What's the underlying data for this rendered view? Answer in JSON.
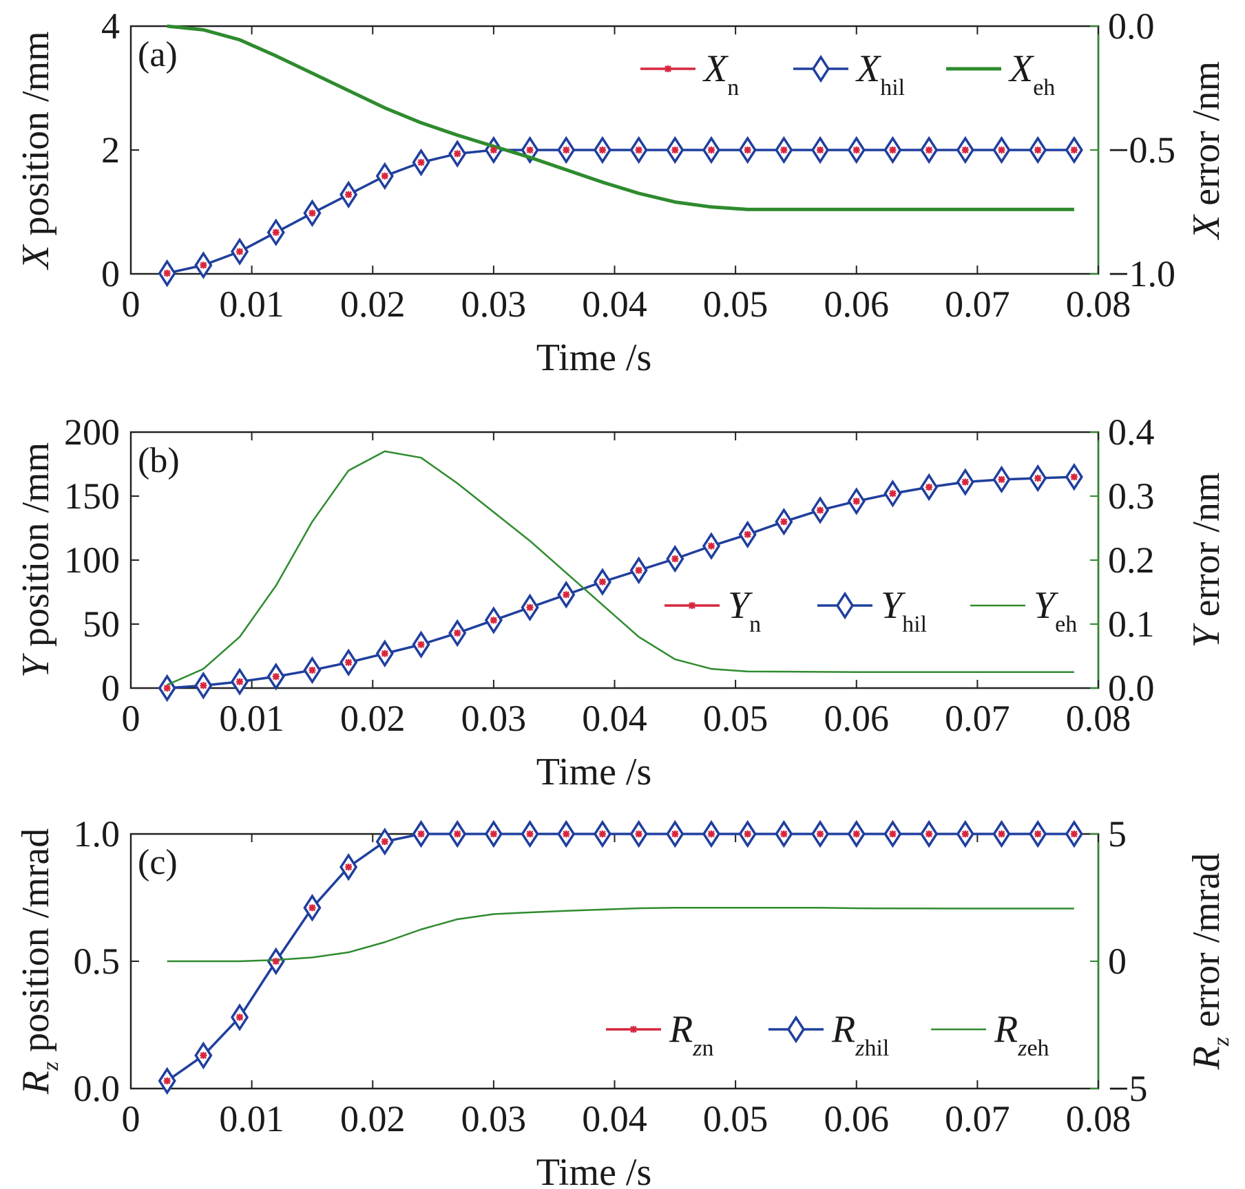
{
  "colors": {
    "n": "#d7263d",
    "hil": "#1f3f9e",
    "eh": "#2e8b2e",
    "axis": "#222222"
  },
  "chart_data": [
    {
      "type": "line",
      "panel_label": "(a)",
      "xlabel": "Time /s",
      "xlim": [
        0,
        0.08
      ],
      "xticks": [
        "0",
        "0.01",
        "0.02",
        "0.03",
        "0.04",
        "0.05",
        "0.06",
        "0.07",
        "0.08"
      ],
      "ylabel_left": {
        "sym": "X",
        "rest": " position /mm"
      },
      "ylim_left": [
        0,
        4
      ],
      "yticks_left": [
        "0",
        "2",
        "4"
      ],
      "ylabel_right": {
        "sym": "X",
        "rest": " error /nm"
      },
      "ylim_right": [
        -1.0,
        0.0
      ],
      "yticks_right": [
        "−1.0",
        "−0.5",
        "0.0"
      ],
      "legend_loc": "top-right",
      "x": [
        0.003,
        0.006,
        0.009,
        0.012,
        0.015,
        0.018,
        0.021,
        0.024,
        0.027,
        0.03,
        0.033,
        0.036,
        0.039,
        0.042,
        0.045,
        0.048,
        0.051,
        0.054,
        0.057,
        0.06,
        0.063,
        0.066,
        0.069,
        0.072,
        0.075,
        0.078
      ],
      "series": [
        {
          "name": {
            "sym": "X",
            "sub": "n"
          },
          "axis": "left",
          "role": "n",
          "values": [
            0.01,
            0.14,
            0.36,
            0.67,
            0.98,
            1.28,
            1.58,
            1.8,
            1.94,
            2.0,
            2.0,
            2.0,
            2.0,
            2.0,
            2.0,
            2.0,
            2.0,
            2.0,
            2.0,
            2.0,
            2.0,
            2.0,
            2.0,
            2.0,
            2.0,
            2.0
          ]
        },
        {
          "name": {
            "sym": "X",
            "sub": "hil"
          },
          "axis": "left",
          "role": "hil",
          "values": [
            0.01,
            0.14,
            0.36,
            0.67,
            0.98,
            1.28,
            1.58,
            1.8,
            1.94,
            2.0,
            2.0,
            2.0,
            2.0,
            2.0,
            2.0,
            2.0,
            2.0,
            2.0,
            2.0,
            2.0,
            2.0,
            2.0,
            2.0,
            2.0,
            2.0,
            2.0
          ]
        },
        {
          "name": {
            "sym": "X",
            "sub": "eh"
          },
          "axis": "right",
          "role": "eh",
          "width": 5,
          "x": [
            0.003,
            0.006,
            0.009,
            0.012,
            0.015,
            0.018,
            0.021,
            0.024,
            0.027,
            0.03,
            0.033,
            0.036,
            0.039,
            0.042,
            0.045,
            0.048,
            0.051,
            0.06,
            0.07,
            0.078
          ],
          "values": [
            0.0,
            -0.015,
            -0.055,
            -0.12,
            -0.19,
            -0.26,
            -0.33,
            -0.39,
            -0.44,
            -0.485,
            -0.53,
            -0.58,
            -0.63,
            -0.675,
            -0.71,
            -0.73,
            -0.74,
            -0.74,
            -0.74,
            -0.74
          ]
        }
      ]
    },
    {
      "type": "line",
      "panel_label": "(b)",
      "xlabel": "Time /s",
      "xlim": [
        0,
        0.08
      ],
      "xticks": [
        "0",
        "0.01",
        "0.02",
        "0.03",
        "0.04",
        "0.05",
        "0.06",
        "0.07",
        "0.08"
      ],
      "ylabel_left": {
        "sym": "Y",
        "rest": " position /mm"
      },
      "ylim_left": [
        0,
        200
      ],
      "yticks_left": [
        "0",
        "50",
        "100",
        "150",
        "200"
      ],
      "ylabel_right": {
        "sym": "Y",
        "rest": " error /nm"
      },
      "ylim_right": [
        0.0,
        0.4
      ],
      "yticks_right": [
        "0.0",
        "0.1",
        "0.2",
        "0.3",
        "0.4"
      ],
      "legend_loc": "center-right",
      "x": [
        0.003,
        0.006,
        0.009,
        0.012,
        0.015,
        0.018,
        0.021,
        0.024,
        0.027,
        0.03,
        0.033,
        0.036,
        0.039,
        0.042,
        0.045,
        0.048,
        0.051,
        0.054,
        0.057,
        0.06,
        0.063,
        0.066,
        0.069,
        0.072,
        0.075,
        0.078
      ],
      "series": [
        {
          "name": {
            "sym": "Y",
            "sub": "n"
          },
          "axis": "left",
          "role": "n",
          "values": [
            0,
            2,
            5,
            9,
            14,
            20,
            27,
            34,
            43,
            53,
            63,
            73,
            83,
            92,
            101,
            111,
            120,
            130,
            139,
            146,
            152,
            157,
            161,
            163,
            164,
            165
          ]
        },
        {
          "name": {
            "sym": "Y",
            "sub": "hil"
          },
          "axis": "left",
          "role": "hil",
          "values": [
            0,
            2,
            5,
            9,
            14,
            20,
            27,
            34,
            43,
            53,
            63,
            73,
            83,
            92,
            101,
            111,
            120,
            130,
            139,
            146,
            152,
            157,
            161,
            163,
            164,
            165
          ]
        },
        {
          "name": {
            "sym": "Y",
            "sub": "eh"
          },
          "axis": "right",
          "role": "eh",
          "width": 2.5,
          "x": [
            0.003,
            0.006,
            0.009,
            0.012,
            0.015,
            0.018,
            0.021,
            0.024,
            0.027,
            0.03,
            0.033,
            0.036,
            0.039,
            0.042,
            0.045,
            0.048,
            0.051,
            0.06,
            0.07,
            0.078
          ],
          "values": [
            0.005,
            0.03,
            0.08,
            0.16,
            0.26,
            0.34,
            0.37,
            0.36,
            0.32,
            0.275,
            0.23,
            0.18,
            0.13,
            0.08,
            0.045,
            0.03,
            0.026,
            0.025,
            0.025,
            0.025
          ]
        }
      ]
    },
    {
      "type": "line",
      "panel_label": "(c)",
      "xlabel": "Time /s",
      "xlim": [
        0,
        0.08
      ],
      "xticks": [
        "0",
        "0.01",
        "0.02",
        "0.03",
        "0.04",
        "0.05",
        "0.06",
        "0.07",
        "0.08"
      ],
      "ylabel_left": {
        "sym": "R",
        "subi": "z",
        "rest": " position /mrad"
      },
      "ylim_left": [
        0.0,
        1.0
      ],
      "yticks_left": [
        "0.0",
        "0.5",
        "1.0"
      ],
      "ylabel_right": {
        "sym": "R",
        "subi": "z",
        "rest": " error /mrad"
      },
      "ylim_right": [
        -5,
        5
      ],
      "yticks_right": [
        "−5",
        "0",
        "5"
      ],
      "legend_loc": "bottom-right",
      "x": [
        0.003,
        0.006,
        0.009,
        0.012,
        0.015,
        0.018,
        0.021,
        0.024,
        0.027,
        0.03,
        0.033,
        0.036,
        0.039,
        0.042,
        0.045,
        0.048,
        0.051,
        0.054,
        0.057,
        0.06,
        0.063,
        0.066,
        0.069,
        0.072,
        0.075,
        0.078
      ],
      "series": [
        {
          "name": {
            "sym": "R",
            "subi": "z",
            "sub": "n"
          },
          "axis": "left",
          "role": "n",
          "values": [
            0.03,
            0.13,
            0.28,
            0.5,
            0.71,
            0.87,
            0.97,
            1.0,
            1.0,
            1.0,
            1.0,
            1.0,
            1.0,
            1.0,
            1.0,
            1.0,
            1.0,
            1.0,
            1.0,
            1.0,
            1.0,
            1.0,
            1.0,
            1.0,
            1.0,
            1.0
          ]
        },
        {
          "name": {
            "sym": "R",
            "subi": "z",
            "sub": "hil"
          },
          "axis": "left",
          "role": "hil",
          "values": [
            0.03,
            0.13,
            0.28,
            0.5,
            0.71,
            0.87,
            0.97,
            1.0,
            1.0,
            1.0,
            1.0,
            1.0,
            1.0,
            1.0,
            1.0,
            1.0,
            1.0,
            1.0,
            1.0,
            1.0,
            1.0,
            1.0,
            1.0,
            1.0,
            1.0,
            1.0
          ]
        },
        {
          "name": {
            "sym": "R",
            "subi": "z",
            "sub": "eh"
          },
          "axis": "right",
          "role": "eh",
          "width": 2.5,
          "x": [
            0.003,
            0.006,
            0.009,
            0.012,
            0.015,
            0.018,
            0.021,
            0.024,
            0.027,
            0.03,
            0.033,
            0.036,
            0.039,
            0.042,
            0.045,
            0.048,
            0.051,
            0.054,
            0.057,
            0.06,
            0.07,
            0.078
          ],
          "values": [
            0.0,
            0.0,
            0.0,
            0.05,
            0.15,
            0.35,
            0.75,
            1.25,
            1.65,
            1.85,
            1.92,
            1.98,
            2.03,
            2.08,
            2.1,
            2.1,
            2.1,
            2.1,
            2.1,
            2.08,
            2.07,
            2.07
          ]
        }
      ]
    }
  ]
}
